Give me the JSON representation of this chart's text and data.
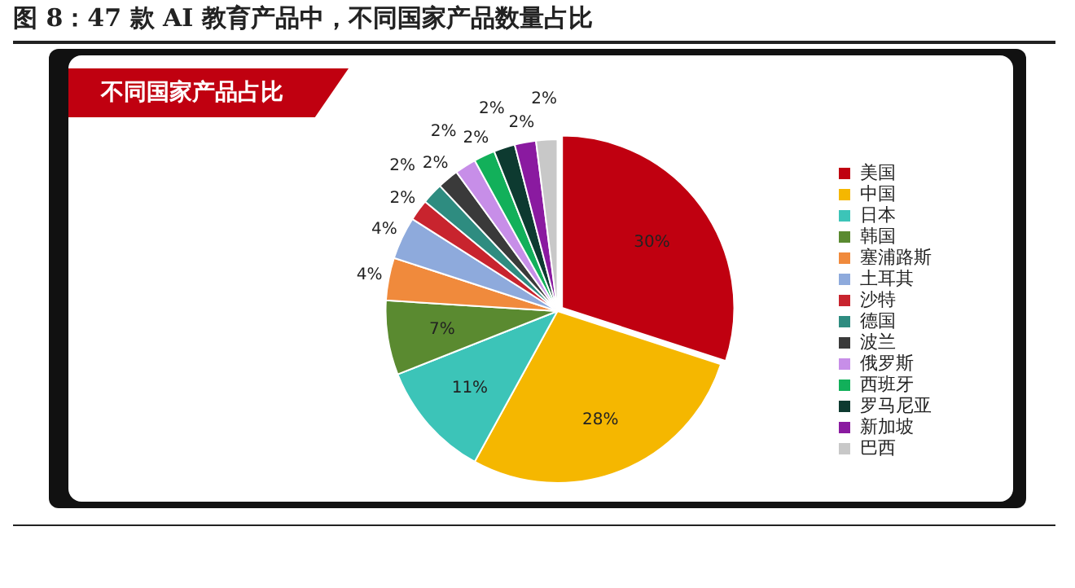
{
  "chart_data": {
    "type": "pie",
    "title": "图 8：47 款 AI 教育产品中，不同国家产品数量占比",
    "subtitle": "不同国家产品占比",
    "categories": [
      "美国",
      "中国",
      "日本",
      "韩国",
      "塞浦路斯",
      "土耳其",
      "沙特",
      "德国",
      "波兰",
      "俄罗斯",
      "西班牙",
      "罗马尼亚",
      "新加坡",
      "巴西"
    ],
    "values": [
      30,
      28,
      11,
      7,
      4,
      4,
      2,
      2,
      2,
      2,
      2,
      2,
      2,
      2
    ],
    "value_labels": [
      "30%",
      "28%",
      "11%",
      "7%",
      "4%",
      "4%",
      "2%",
      "2%",
      "2%",
      "2%",
      "2%",
      "2%",
      "2%",
      "2%"
    ],
    "colors": [
      "#c00010",
      "#f5b700",
      "#3cc4b8",
      "#5a8a30",
      "#f08a3c",
      "#8eaadc",
      "#c8242e",
      "#2e8c80",
      "#3a3a3a",
      "#c78ee8",
      "#12b05a",
      "#0d3a30",
      "#8a1aa0",
      "#c8c8c8"
    ],
    "legend": "right"
  }
}
